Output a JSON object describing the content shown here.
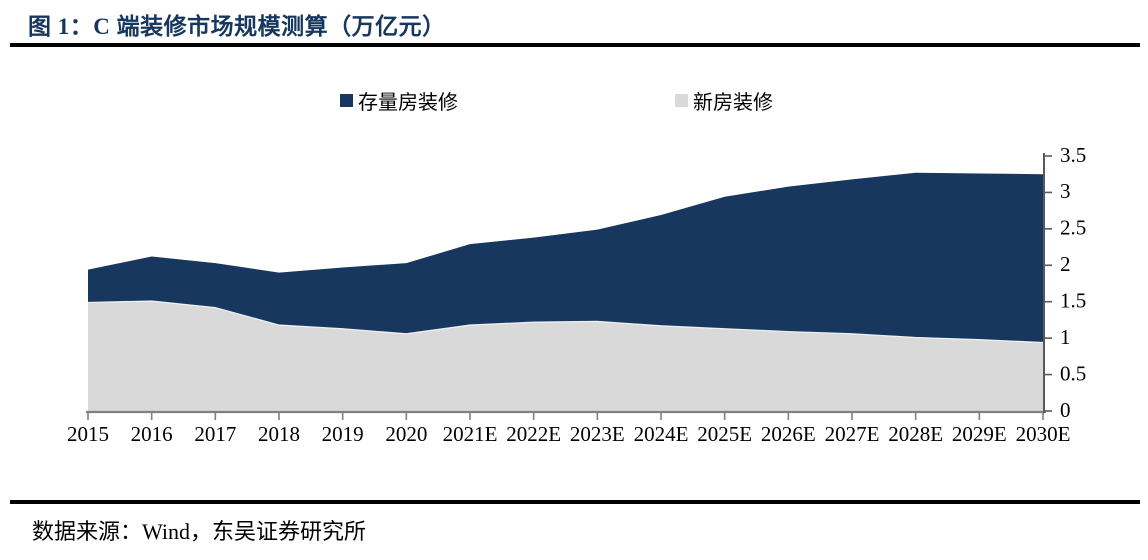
{
  "page": {
    "title": "图 1：C 端装修市场规模测算（万亿元）",
    "footer": "数据来源：Wind，东吴证券研究所"
  },
  "colors": {
    "title_text": "#17375E",
    "existing_home_area": "#17375E",
    "new_home_area": "#D9D9D9",
    "bottom_axis": "#808080",
    "right_axis": "#595959",
    "rule": "#000000"
  },
  "chart_data": {
    "type": "area",
    "stacked": true,
    "title": "C 端装修市场规模测算（万亿元）",
    "unit": "万亿元",
    "categories": [
      "2015",
      "2016",
      "2017",
      "2018",
      "2019",
      "2020",
      "2021E",
      "2022E",
      "2023E",
      "2024E",
      "2025E",
      "2026E",
      "2027E",
      "2028E",
      "2029E",
      "2030E"
    ],
    "series": [
      {
        "name": "新房装修",
        "color": "#D9D9D9",
        "values": [
          1.49,
          1.51,
          1.42,
          1.18,
          1.13,
          1.06,
          1.18,
          1.22,
          1.23,
          1.17,
          1.13,
          1.09,
          1.06,
          1.01,
          0.98,
          0.94
        ]
      },
      {
        "name": "存量房装修",
        "color": "#17375E",
        "values": [
          0.45,
          0.61,
          0.61,
          0.72,
          0.84,
          0.97,
          1.11,
          1.16,
          1.26,
          1.52,
          1.81,
          1.99,
          2.12,
          2.26,
          2.28,
          2.31
        ]
      }
    ],
    "totals": [
      1.94,
      2.12,
      2.03,
      1.9,
      1.97,
      2.03,
      2.29,
      2.38,
      2.49,
      2.69,
      2.94,
      3.08,
      3.18,
      3.27,
      3.26,
      3.25
    ],
    "legend": [
      {
        "label": "存量房装修",
        "color": "#17375E"
      },
      {
        "label": "新房装修",
        "color": "#D9D9D9"
      }
    ],
    "legend_position": "top",
    "y_axis_side": "right",
    "ylim": [
      0,
      3.5
    ],
    "yticks": [
      "0",
      "0.5",
      "1",
      "1.5",
      "2",
      "2.5",
      "3",
      "3.5"
    ],
    "grid": false
  }
}
